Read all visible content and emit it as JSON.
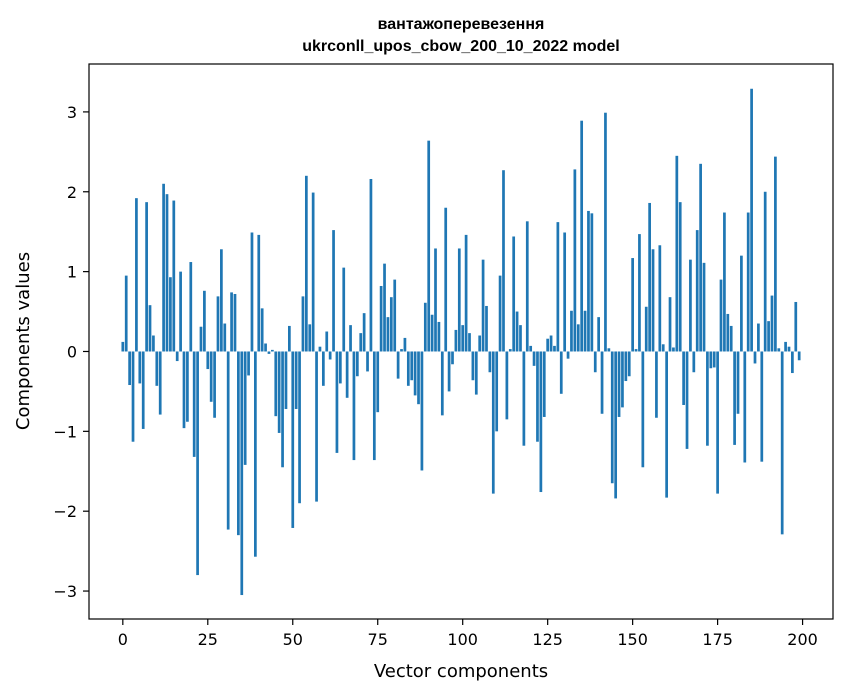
{
  "chart_data": {
    "type": "bar",
    "title": "вантажоперевезення",
    "subtitle": "ukrconll_upos_cbow_200_10_2022 model",
    "xlabel": "Vector components",
    "ylabel": "Components values",
    "xlim": [
      -9.95,
      208.95
    ],
    "ylim": [
      -3.35,
      3.6
    ],
    "xticks": [
      0,
      25,
      50,
      75,
      100,
      125,
      150,
      175,
      200
    ],
    "yticks": [
      -3,
      -2,
      -1,
      0,
      1,
      2,
      3
    ],
    "ytick_labels": [
      "−3",
      "−2",
      "−1",
      "0",
      "1",
      "2",
      "3"
    ],
    "bar_color": "#1f77b4",
    "grid": false,
    "x": [
      0,
      1,
      2,
      3,
      4,
      5,
      6,
      7,
      8,
      9,
      10,
      11,
      12,
      13,
      14,
      15,
      16,
      17,
      18,
      19,
      20,
      21,
      22,
      23,
      24,
      25,
      26,
      27,
      28,
      29,
      30,
      31,
      32,
      33,
      34,
      35,
      36,
      37,
      38,
      39,
      40,
      41,
      42,
      43,
      44,
      45,
      46,
      47,
      48,
      49,
      50,
      51,
      52,
      53,
      54,
      55,
      56,
      57,
      58,
      59,
      60,
      61,
      62,
      63,
      64,
      65,
      66,
      67,
      68,
      69,
      70,
      71,
      72,
      73,
      74,
      75,
      76,
      77,
      78,
      79,
      80,
      81,
      82,
      83,
      84,
      85,
      86,
      87,
      88,
      89,
      90,
      91,
      92,
      93,
      94,
      95,
      96,
      97,
      98,
      99,
      100,
      101,
      102,
      103,
      104,
      105,
      106,
      107,
      108,
      109,
      110,
      111,
      112,
      113,
      114,
      115,
      116,
      117,
      118,
      119,
      120,
      121,
      122,
      123,
      124,
      125,
      126,
      127,
      128,
      129,
      130,
      131,
      132,
      133,
      134,
      135,
      136,
      137,
      138,
      139,
      140,
      141,
      142,
      143,
      144,
      145,
      146,
      147,
      148,
      149,
      150,
      151,
      152,
      153,
      154,
      155,
      156,
      157,
      158,
      159,
      160,
      161,
      162,
      163,
      164,
      165,
      166,
      167,
      168,
      169,
      170,
      171,
      172,
      173,
      174,
      175,
      176,
      177,
      178,
      179,
      180,
      181,
      182,
      183,
      184,
      185,
      186,
      187,
      188,
      189,
      190,
      191,
      192,
      193,
      194,
      195,
      196,
      197,
      198,
      199
    ],
    "values": [
      0.12,
      0.95,
      -0.42,
      -1.13,
      1.92,
      -0.4,
      -0.97,
      1.87,
      0.58,
      0.2,
      -0.43,
      -0.79,
      2.1,
      1.97,
      0.93,
      1.89,
      -0.12,
      1.0,
      -0.96,
      -0.88,
      1.12,
      -1.32,
      -2.8,
      0.31,
      0.76,
      -0.22,
      -0.63,
      -0.83,
      0.69,
      1.28,
      0.35,
      -2.23,
      0.74,
      0.72,
      -2.3,
      -3.05,
      -1.42,
      -0.3,
      1.49,
      -2.57,
      1.46,
      0.54,
      0.1,
      -0.03,
      0.02,
      -0.81,
      -1.02,
      -1.45,
      -0.72,
      0.32,
      -2.21,
      -0.72,
      -1.9,
      0.69,
      2.2,
      0.34,
      1.99,
      -1.88,
      0.06,
      -0.43,
      0.25,
      -0.1,
      1.52,
      -1.27,
      -0.4,
      1.05,
      -0.58,
      0.33,
      -1.36,
      -0.31,
      0.23,
      0.48,
      -0.25,
      2.16,
      -1.36,
      -0.76,
      0.82,
      1.1,
      0.43,
      0.68,
      0.9,
      -0.34,
      0.03,
      0.17,
      -0.43,
      -0.36,
      -0.55,
      -0.66,
      -1.49,
      0.61,
      2.64,
      0.46,
      1.29,
      0.37,
      -0.8,
      1.8,
      -0.5,
      -0.16,
      0.27,
      1.29,
      0.33,
      1.46,
      0.23,
      -0.36,
      -0.54,
      0.2,
      1.15,
      0.57,
      -0.26,
      -1.78,
      -1.0,
      0.95,
      2.27,
      -0.85,
      0.03,
      1.44,
      0.5,
      0.33,
      -1.18,
      1.63,
      0.07,
      -0.18,
      -1.13,
      -1.76,
      -0.82,
      0.16,
      0.2,
      0.07,
      1.62,
      -0.53,
      1.49,
      -0.09,
      0.51,
      2.28,
      0.34,
      2.89,
      0.51,
      1.76,
      1.73,
      -0.26,
      0.43,
      -0.78,
      2.99,
      0.04,
      -1.65,
      -1.84,
      -0.82,
      -0.7,
      -0.37,
      -0.31,
      1.17,
      0.03,
      1.47,
      -1.45,
      0.56,
      1.86,
      1.28,
      -0.83,
      1.33,
      0.09,
      -1.83,
      0.68,
      0.05,
      2.45,
      1.87,
      -0.67,
      -1.22,
      1.15,
      -0.26,
      1.52,
      2.35,
      1.11,
      -1.18,
      -0.21,
      -0.2,
      -1.78,
      0.9,
      1.74,
      0.47,
      0.32,
      -1.17,
      -0.78,
      1.2,
      -1.39,
      1.74,
      3.29,
      -0.15,
      0.35,
      -1.38,
      2.0,
      0.38,
      0.7,
      2.44,
      0.04,
      -2.29,
      0.12,
      0.06,
      -0.27,
      0.62,
      -0.11
    ]
  }
}
